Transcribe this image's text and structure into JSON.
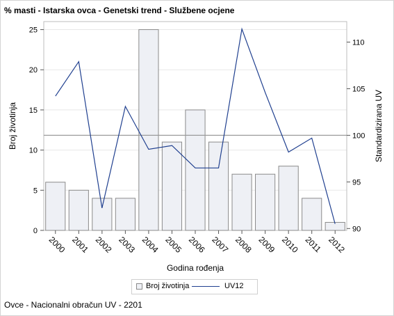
{
  "title": "% masti - Istarska ovca - Genetski trend - Službene ocjene",
  "footer": "Ovce - Nacionalni obračun UV - 2201",
  "colors": {
    "bar_fill": "#eef0f5",
    "bar_stroke": "#8a8a8a",
    "line": "#1f3f8f",
    "reference_line": "#9a9a9a",
    "grid": "#e8e8e8"
  },
  "chart_data": {
    "type": "bar",
    "xlabel": "Godina rođenja",
    "ylabel": "Broj životinja",
    "y2label": "Standardizirana UV",
    "categories": [
      "2000",
      "2001",
      "2002",
      "2003",
      "2004",
      "2005",
      "2006",
      "2007",
      "2008",
      "2009",
      "2010",
      "2011",
      "2012"
    ],
    "ylim": [
      0,
      26
    ],
    "yticks": [
      0,
      5,
      10,
      15,
      20,
      25
    ],
    "y2lim": [
      89.8,
      112.2
    ],
    "y2ticks": [
      90,
      95,
      100,
      105,
      110
    ],
    "grid": true,
    "legend_position": "bottom",
    "reference_line_y2": 100,
    "series": [
      {
        "name": "Broj životinja",
        "type": "bar",
        "axis": "left",
        "values": [
          6,
          5,
          4,
          4,
          25,
          11,
          15,
          11,
          7,
          7,
          8,
          4,
          1
        ]
      },
      {
        "name": "UV12",
        "type": "line",
        "axis": "right",
        "values": [
          104.2,
          107.9,
          92.2,
          103.1,
          98.5,
          98.9,
          96.5,
          96.5,
          111.4,
          104.6,
          98.2,
          99.7,
          90.5
        ]
      }
    ]
  }
}
